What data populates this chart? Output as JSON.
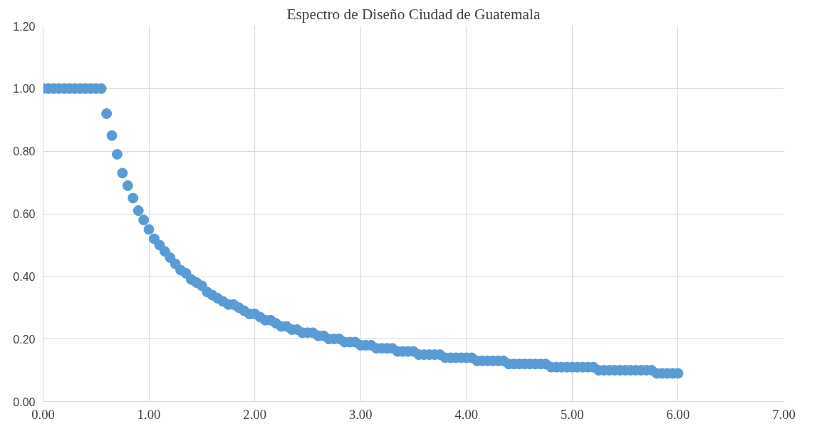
{
  "chart_data": {
    "type": "scatter",
    "title": "Espectro de Diseño Ciudad de Guatemala",
    "x": [
      0.0,
      0.05,
      0.1,
      0.15,
      0.2,
      0.25,
      0.3,
      0.35,
      0.4,
      0.45,
      0.5,
      0.55,
      0.6,
      0.65,
      0.7,
      0.75,
      0.8,
      0.85,
      0.9,
      0.95,
      1.0,
      1.05,
      1.1,
      1.15,
      1.2,
      1.25,
      1.3,
      1.35,
      1.4,
      1.45,
      1.5,
      1.55,
      1.6,
      1.65,
      1.7,
      1.75,
      1.8,
      1.85,
      1.9,
      1.95,
      2.0,
      2.05,
      2.1,
      2.15,
      2.2,
      2.25,
      2.3,
      2.35,
      2.4,
      2.45,
      2.5,
      2.55,
      2.6,
      2.65,
      2.7,
      2.75,
      2.8,
      2.85,
      2.9,
      2.95,
      3.0,
      3.05,
      3.1,
      3.15,
      3.2,
      3.25,
      3.3,
      3.35,
      3.4,
      3.45,
      3.5,
      3.55,
      3.6,
      3.65,
      3.7,
      3.75,
      3.8,
      3.85,
      3.9,
      3.95,
      4.0,
      4.05,
      4.1,
      4.15,
      4.2,
      4.25,
      4.3,
      4.35,
      4.4,
      4.45,
      4.5,
      4.55,
      4.6,
      4.65,
      4.7,
      4.75,
      4.8,
      4.85,
      4.9,
      4.95,
      5.0,
      5.05,
      5.1,
      5.15,
      5.2,
      5.25,
      5.3,
      5.35,
      5.4,
      5.45,
      5.5,
      5.55,
      5.6,
      5.65,
      5.7,
      5.75,
      5.8,
      5.85,
      5.9,
      5.95,
      6.0
    ],
    "series": [
      {
        "color": "#5b9bd5",
        "values": [
          1.0,
          1.0,
          1.0,
          1.0,
          1.0,
          1.0,
          1.0,
          1.0,
          1.0,
          1.0,
          1.0,
          1.0,
          0.92,
          0.85,
          0.79,
          0.73,
          0.69,
          0.65,
          0.61,
          0.58,
          0.55,
          0.52,
          0.5,
          0.48,
          0.46,
          0.44,
          0.42,
          0.41,
          0.39,
          0.38,
          0.37,
          0.35,
          0.34,
          0.33,
          0.32,
          0.31,
          0.31,
          0.3,
          0.29,
          0.28,
          0.28,
          0.27,
          0.26,
          0.26,
          0.25,
          0.24,
          0.24,
          0.23,
          0.23,
          0.22,
          0.22,
          0.22,
          0.21,
          0.21,
          0.2,
          0.2,
          0.2,
          0.19,
          0.19,
          0.19,
          0.18,
          0.18,
          0.18,
          0.17,
          0.17,
          0.17,
          0.17,
          0.16,
          0.16,
          0.16,
          0.16,
          0.15,
          0.15,
          0.15,
          0.15,
          0.15,
          0.14,
          0.14,
          0.14,
          0.14,
          0.14,
          0.14,
          0.13,
          0.13,
          0.13,
          0.13,
          0.13,
          0.13,
          0.12,
          0.12,
          0.12,
          0.12,
          0.12,
          0.12,
          0.12,
          0.12,
          0.11,
          0.11,
          0.11,
          0.11,
          0.11,
          0.11,
          0.11,
          0.11,
          0.11,
          0.1,
          0.1,
          0.1,
          0.1,
          0.1,
          0.1,
          0.1,
          0.1,
          0.1,
          0.1,
          0.1,
          0.09,
          0.09,
          0.09,
          0.09,
          0.09
        ]
      }
    ],
    "xlim": [
      0,
      7
    ],
    "ylim": [
      0,
      1.2
    ],
    "xticks": [
      {
        "value": 0,
        "label": "0.00"
      },
      {
        "value": 1,
        "label": "1.00"
      },
      {
        "value": 2,
        "label": "2.00"
      },
      {
        "value": 3,
        "label": "3.00"
      },
      {
        "value": 4,
        "label": "4.00"
      },
      {
        "value": 5,
        "label": "5.00"
      },
      {
        "value": 6,
        "label": "6.00"
      },
      {
        "value": 7,
        "label": "7.00"
      }
    ],
    "yticks": [
      {
        "value": 0,
        "label": "0.00"
      },
      {
        "value": 0.2,
        "label": "0.20"
      },
      {
        "value": 0.4,
        "label": "0.40"
      },
      {
        "value": 0.6,
        "label": "0.60"
      },
      {
        "value": 0.8,
        "label": "0.80"
      },
      {
        "value": 1.0,
        "label": "1.00"
      },
      {
        "value": 1.2,
        "label": "1.20"
      }
    ],
    "grid": true,
    "marker": "circle"
  }
}
